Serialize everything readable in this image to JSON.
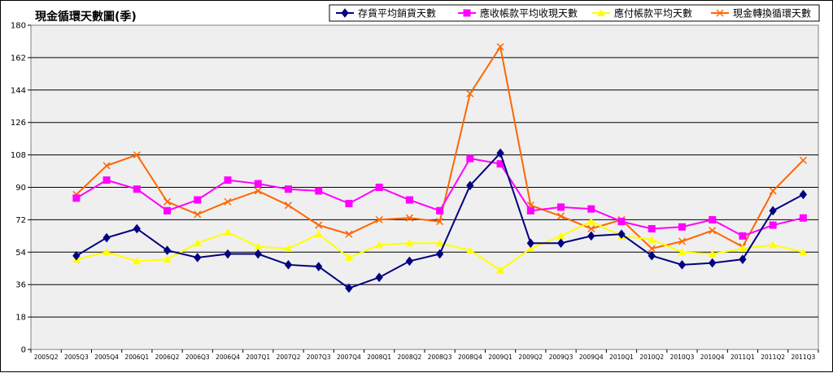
{
  "chart_data": {
    "type": "line",
    "title": "現金循環天數圖(季)",
    "xlabel": "",
    "ylabel": "",
    "ylim": [
      0,
      180
    ],
    "yticks": [
      0,
      18,
      36,
      54,
      72,
      90,
      108,
      126,
      144,
      162,
      180
    ],
    "grid": true,
    "legend_position": "top-right",
    "categories": [
      "2005Q2",
      "2005Q3",
      "2005Q4",
      "2006Q1",
      "2006Q2",
      "2006Q3",
      "2006Q4",
      "2007Q1",
      "2007Q2",
      "2007Q3",
      "2007Q4",
      "2008Q1",
      "2008Q2",
      "2008Q3",
      "2008Q4",
      "2009Q1",
      "2009Q2",
      "2009Q3",
      "2009Q4",
      "2010Q1",
      "2010Q2",
      "2010Q3",
      "2010Q4",
      "2011Q1",
      "2011Q2",
      "2011Q3"
    ],
    "series": [
      {
        "name": "存貨平均銷貨天數",
        "color": "#000080",
        "marker": "diamond",
        "values": [
          null,
          52,
          62,
          67,
          55,
          51,
          53,
          53,
          47,
          46,
          34,
          40,
          49,
          53,
          91,
          109,
          59,
          59,
          63,
          64,
          52,
          47,
          48,
          50,
          77,
          86
        ]
      },
      {
        "name": "應收帳款平均收現天數",
        "color": "#ff00ff",
        "marker": "square",
        "values": [
          null,
          84,
          94,
          89,
          77,
          83,
          94,
          92,
          89,
          88,
          81,
          90,
          83,
          77,
          106,
          103,
          77,
          79,
          78,
          71,
          67,
          68,
          72,
          63,
          69,
          73
        ]
      },
      {
        "name": "應付帳款平均天數",
        "color": "#ffff00",
        "marker": "triangle",
        "values": [
          null,
          50,
          54,
          49,
          50,
          59,
          65,
          57,
          56,
          64,
          51,
          58,
          59,
          59,
          55,
          44,
          56,
          63,
          71,
          63,
          61,
          54,
          53,
          56,
          58,
          54
        ]
      },
      {
        "name": "現金轉換循環天數",
        "color": "#ff6600",
        "marker": "x",
        "values": [
          null,
          86,
          102,
          108,
          82,
          75,
          82,
          88,
          80,
          69,
          64,
          72,
          73,
          71,
          142,
          168,
          80,
          74,
          67,
          72,
          56,
          60,
          66,
          57,
          88,
          105
        ]
      }
    ]
  }
}
